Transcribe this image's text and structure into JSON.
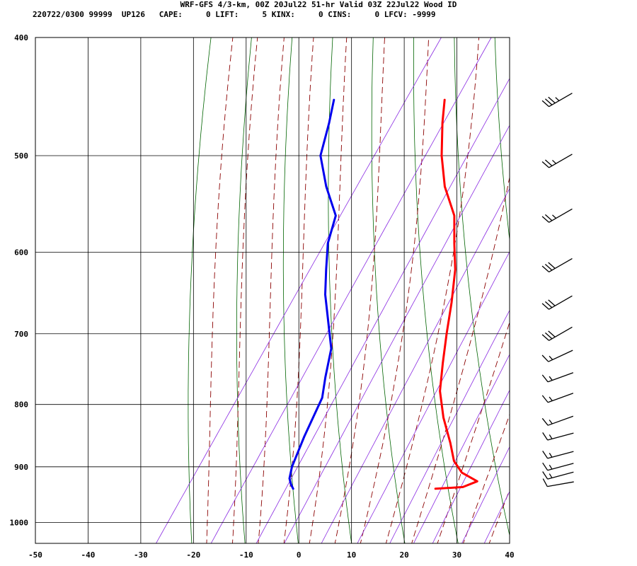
{
  "header": {
    "title": "WRF-GFS 4/3-km, 00Z 20Jul22 51-hr Valid 03Z 22Jul22 Wood ID",
    "indices": "220722/0300 99999  UP126   CAPE:     0 LIFT:     5 KINX:     0 CINS:     0 LFCV: -9999"
  },
  "colors": {
    "temperature": "#ff0000",
    "dewpoint": "#0000ee",
    "dry_adiabat": "#006400",
    "moist_adiabat": "#8b0000",
    "mixing_ratio": "#8a2be2",
    "grid": "#000000"
  },
  "chart_data": {
    "type": "skew-t log-p sounding",
    "x_ticks": [
      "-50",
      "-40",
      "-30",
      "-20",
      "-10",
      "0",
      "10",
      "20",
      "30",
      "40"
    ],
    "y_ticks": [
      "400",
      "500",
      "600",
      "700",
      "800",
      "900",
      "1000"
    ],
    "x_range": [
      -50,
      40
    ],
    "p_range_hPa": [
      1040,
      400
    ],
    "grid": true,
    "series": [
      {
        "key": "temperature",
        "p": [
          450,
          470,
          500,
          530,
          560,
          590,
          620,
          660,
          700,
          740,
          780,
          820,
          860,
          890,
          910,
          925,
          935,
          938
        ],
        "t": [
          -28.5,
          -26.0,
          -22.0,
          -17.5,
          -12.0,
          -8.5,
          -5.0,
          -1.5,
          1.5,
          4.5,
          7.5,
          11.5,
          16.0,
          19.0,
          22.0,
          26.0,
          24.0,
          19.0
        ]
      },
      {
        "key": "dewpoint",
        "p": [
          450,
          470,
          500,
          530,
          560,
          590,
          620,
          650,
          720,
          760,
          790,
          850,
          900,
          920,
          930,
          938
        ],
        "t": [
          -49.5,
          -47.5,
          -45.0,
          -40.0,
          -34.5,
          -32.5,
          -29.5,
          -26.5,
          -18.5,
          -16.0,
          -14.0,
          -12.5,
          -11.0,
          -10.0,
          -9.0,
          -8.0
        ]
      }
    ],
    "wind_barbs": [
      {
        "p": 450,
        "dir_deg": 240,
        "speed_kt": 35
      },
      {
        "p": 505,
        "dir_deg": 240,
        "speed_kt": 25
      },
      {
        "p": 560,
        "dir_deg": 240,
        "speed_kt": 25
      },
      {
        "p": 615,
        "dir_deg": 240,
        "speed_kt": 30
      },
      {
        "p": 660,
        "dir_deg": 240,
        "speed_kt": 30
      },
      {
        "p": 700,
        "dir_deg": 240,
        "speed_kt": 30
      },
      {
        "p": 730,
        "dir_deg": 245,
        "speed_kt": 15
      },
      {
        "p": 760,
        "dir_deg": 250,
        "speed_kt": 15
      },
      {
        "p": 790,
        "dir_deg": 250,
        "speed_kt": 15
      },
      {
        "p": 825,
        "dir_deg": 250,
        "speed_kt": 15
      },
      {
        "p": 850,
        "dir_deg": 255,
        "speed_kt": 15
      },
      {
        "p": 880,
        "dir_deg": 255,
        "speed_kt": 15
      },
      {
        "p": 900,
        "dir_deg": 255,
        "speed_kt": 15
      },
      {
        "p": 915,
        "dir_deg": 255,
        "speed_kt": 15
      },
      {
        "p": 930,
        "dir_deg": 260,
        "speed_kt": 10
      }
    ]
  }
}
